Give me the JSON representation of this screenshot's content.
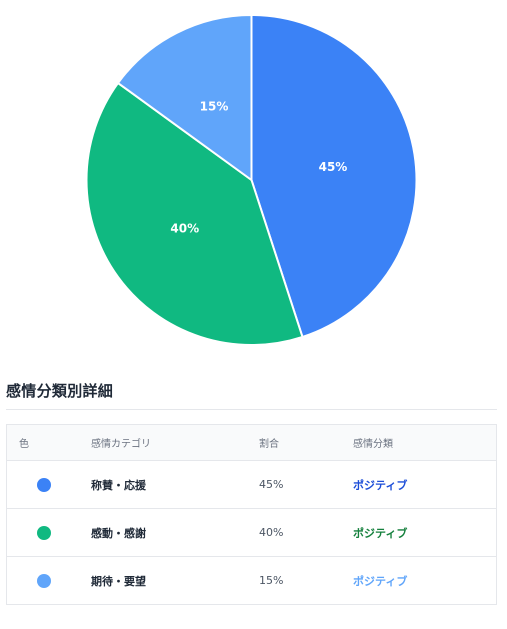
{
  "chart_data": {
    "type": "pie",
    "slices": [
      {
        "label": "称賛・応援",
        "value": 45,
        "display": "45%",
        "color": "#3b82f6"
      },
      {
        "label": "感動・感謝",
        "value": 40,
        "display": "40%",
        "color": "#10b981"
      },
      {
        "label": "期待・要望",
        "value": 15,
        "display": "15%",
        "color": "#60a5fa"
      }
    ]
  },
  "section": {
    "title": "感情分類別詳細"
  },
  "table": {
    "headers": {
      "color": "色",
      "category": "感情カテゴリ",
      "ratio": "割合",
      "classification": "感情分類"
    },
    "rows": [
      {
        "color": "#3b82f6",
        "category": "称賛・応援",
        "ratio": "45%",
        "classification": "ポジティブ",
        "classification_color": "#1d4ed8"
      },
      {
        "color": "#10b981",
        "category": "感動・感謝",
        "ratio": "40%",
        "classification": "ポジティブ",
        "classification_color": "#15803d"
      },
      {
        "color": "#60a5fa",
        "category": "期待・要望",
        "ratio": "15%",
        "classification": "ポジティブ",
        "classification_color": "#60a5fa"
      }
    ]
  }
}
